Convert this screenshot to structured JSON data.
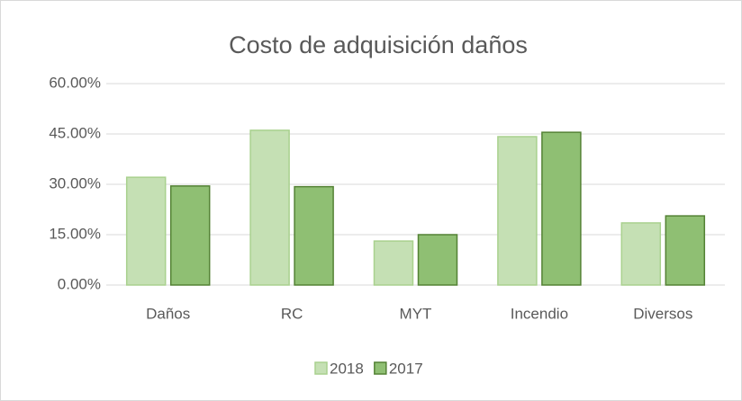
{
  "chart_data": {
    "type": "bar",
    "title": "Costo de adquisición daños",
    "categories": [
      "Daños",
      "RC",
      "MYT",
      "Incendio",
      "Diversos"
    ],
    "series": [
      {
        "name": "2018",
        "color": "#c5e0b4",
        "values": [
          32.1,
          46.1,
          13.1,
          44.2,
          18.5
        ]
      },
      {
        "name": "2017",
        "color": "#8fbf73",
        "values": [
          29.5,
          29.3,
          15.0,
          45.5,
          20.6
        ]
      }
    ],
    "ylim": [
      0,
      60
    ],
    "yticks": [
      {
        "value": 0,
        "label": "0.00%"
      },
      {
        "value": 15,
        "label": "15.00%"
      },
      {
        "value": 30,
        "label": "30.00%"
      },
      {
        "value": 45,
        "label": "45.00%"
      },
      {
        "value": 60,
        "label": "60.00%"
      }
    ],
    "grid": true,
    "legend": "bottom"
  }
}
